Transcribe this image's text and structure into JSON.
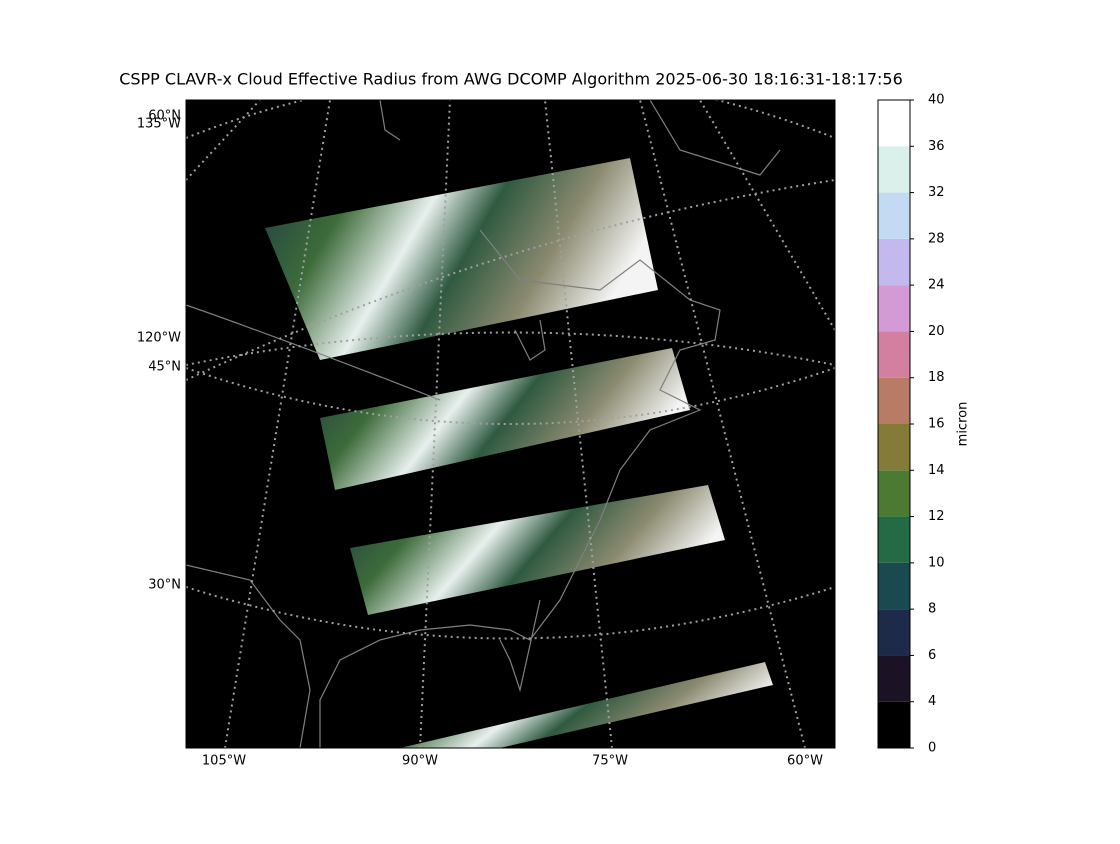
{
  "map": {
    "title": "CSPP CLAVR-x Cloud Effective Radius from AWG DCOMP Algorithm 2025-06-30 18:16:31-18:17:56",
    "lon_labels": [
      "105°W",
      "90°W",
      "75°W",
      "60°W"
    ],
    "left_labels": [
      "60°N",
      "135°W",
      "120°W",
      "45°N",
      "30°N"
    ],
    "colorbar": {
      "label": "micron",
      "ticks": [
        0,
        4,
        6,
        8,
        10,
        12,
        14,
        16,
        18,
        20,
        24,
        28,
        32,
        36,
        40
      ],
      "colors": [
        "#000000",
        "#1c1226",
        "#1d2a4a",
        "#1a4a4f",
        "#236a45",
        "#4c7a33",
        "#857b38",
        "#b87b66",
        "#d380a0",
        "#d39ad6",
        "#c4b9ee",
        "#c4d9f2",
        "#d9f1ea",
        "#ffffff"
      ]
    }
  }
}
